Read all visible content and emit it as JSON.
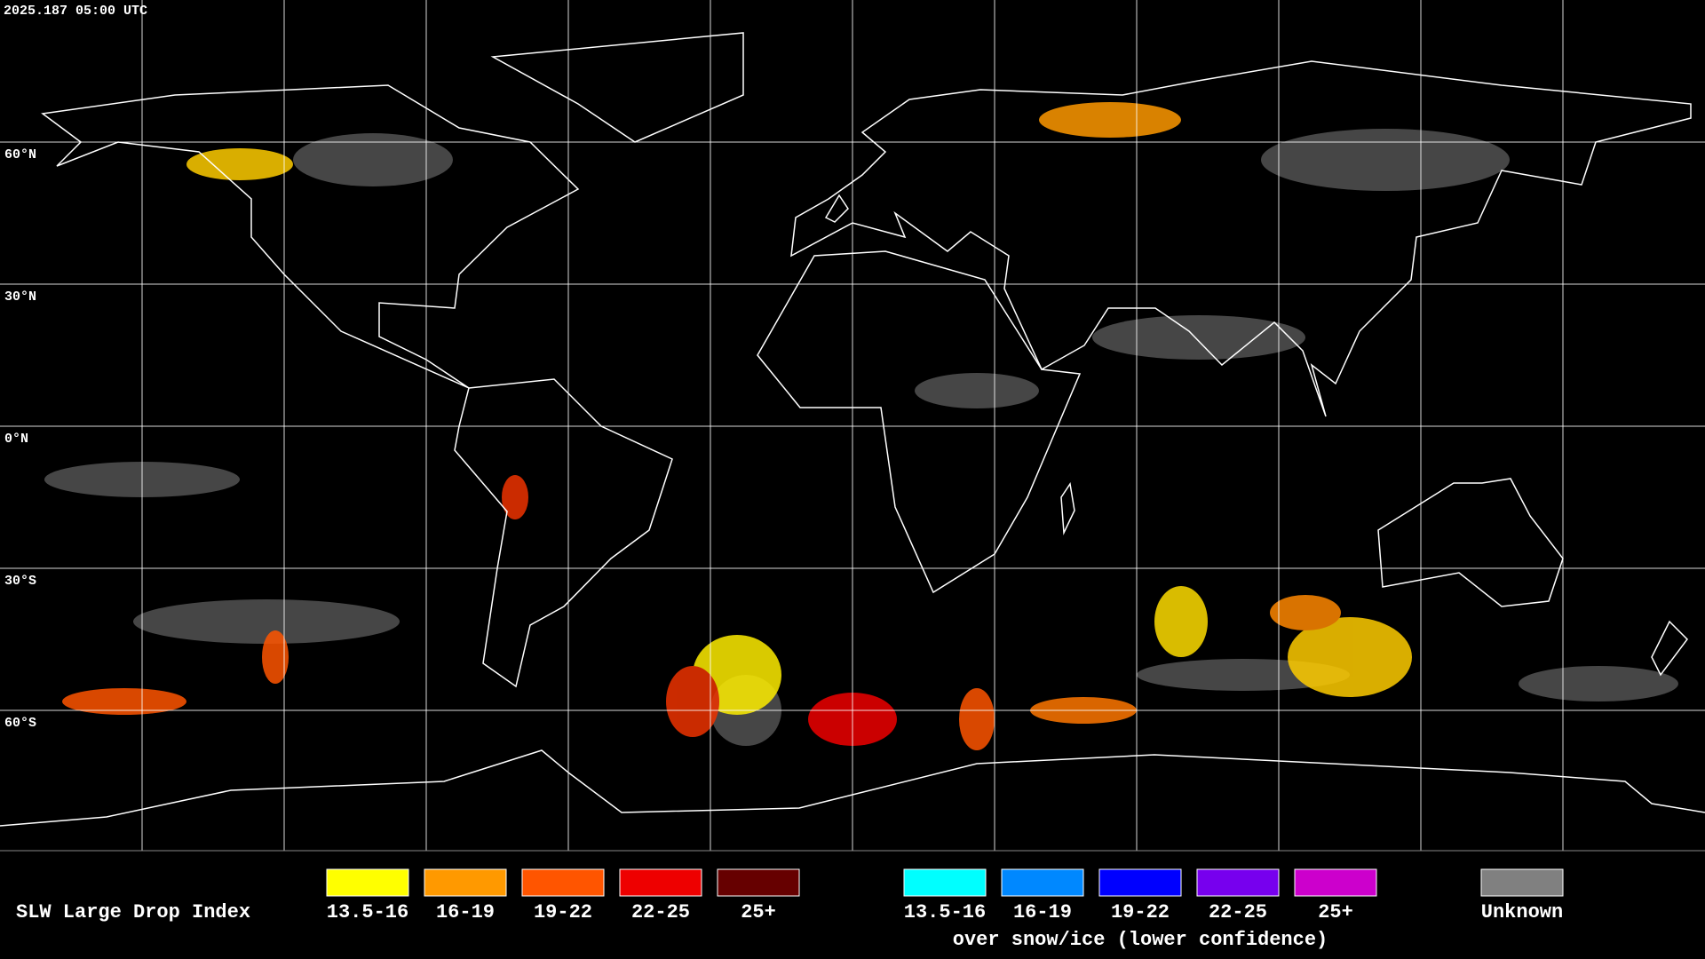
{
  "timestamp": "2025.187 05:00 UTC",
  "latitude_labels": [
    "60°N",
    "30°N",
    "0°N",
    "30°S",
    "60°S"
  ],
  "legend": {
    "title": "SLW Large Drop Index",
    "items": [
      {
        "label": "13.5-16",
        "color": "#ffff00"
      },
      {
        "label": "16-19",
        "color": "#ff9900"
      },
      {
        "label": "19-22",
        "color": "#ff5500"
      },
      {
        "label": "22-25",
        "color": "#ee0000"
      },
      {
        "label": "25+",
        "color": "#660000"
      }
    ],
    "snow_ice_items": [
      {
        "label": "13.5-16",
        "color": "#00ffff"
      },
      {
        "label": "16-19",
        "color": "#0088ff"
      },
      {
        "label": "19-22",
        "color": "#0000ff"
      },
      {
        "label": "22-25",
        "color": "#7700ee"
      },
      {
        "label": "25+",
        "color": "#cc00cc"
      }
    ],
    "snow_ice_caption": "over snow/ice (lower confidence)",
    "unknown": {
      "label": "Unknown",
      "color": "#808080"
    }
  }
}
